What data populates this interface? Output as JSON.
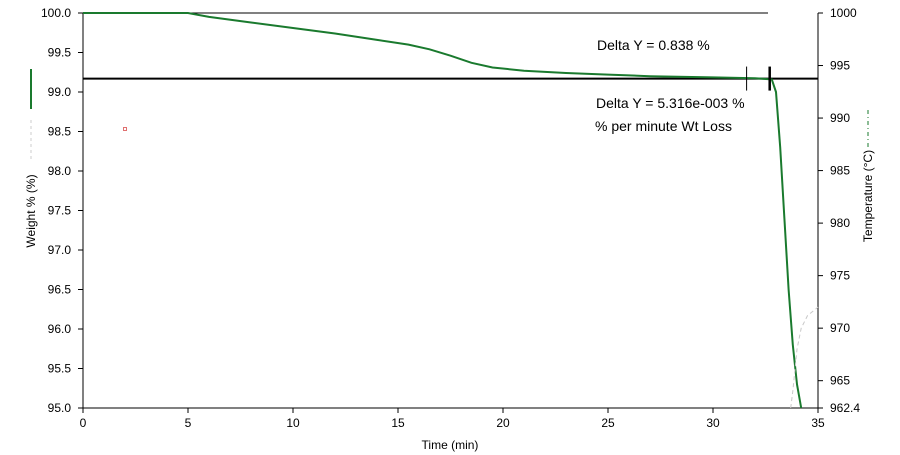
{
  "chart_data": {
    "type": "line",
    "xlabel": "Time (min)",
    "ylabel": "Weight % (%)",
    "y2label": "Temperature (°C)",
    "xlim": [
      0,
      35
    ],
    "ylim": [
      95.0,
      100.0
    ],
    "y2lim": [
      962.4,
      1000
    ],
    "x_ticks": [
      "0",
      "5",
      "10",
      "15",
      "20",
      "25",
      "30",
      "35"
    ],
    "y_ticks": [
      "95.0",
      "95.5",
      "96.0",
      "96.5",
      "97.0",
      "97.5",
      "98.0",
      "98.5",
      "99.0",
      "99.5",
      "100.0"
    ],
    "y2_ticks": [
      "962.4",
      "965",
      "970",
      "975",
      "980",
      "985",
      "990",
      "995",
      "1000"
    ],
    "grid": false,
    "series": [
      {
        "axis": "left",
        "color": "#1a7a2e",
        "x": [
          0,
          1.5,
          5,
          6,
          8,
          10,
          12,
          14,
          15.5,
          16.5,
          17.5,
          18.5,
          19.5,
          21,
          23,
          25,
          27,
          30,
          32,
          32.8,
          33.0,
          33.2,
          33.4,
          33.6,
          33.8,
          34.0,
          34.2
        ],
        "y": [
          100.0,
          100.0,
          100.0,
          99.95,
          99.88,
          99.81,
          99.74,
          99.66,
          99.6,
          99.54,
          99.46,
          99.37,
          99.31,
          99.27,
          99.24,
          99.22,
          99.2,
          99.185,
          99.175,
          99.16,
          99.0,
          98.3,
          97.4,
          96.5,
          95.8,
          95.3,
          95.0
        ]
      },
      {
        "axis": "right",
        "color": "#c8c8c8",
        "x": [
          33.7,
          33.8,
          33.9,
          34.0,
          34.2,
          34.5,
          35.0
        ],
        "y": [
          962.4,
          964.0,
          966.0,
          968.0,
          970.0,
          971.2,
          972.0
        ]
      }
    ],
    "hlines": [
      {
        "axis": "left",
        "y": 99.17,
        "color": "#000000"
      }
    ],
    "cursors": [
      {
        "x": 31.6,
        "y": 99.17,
        "style": "thin"
      },
      {
        "x": 32.7,
        "y": 99.17,
        "style": "thick"
      }
    ],
    "annotations": [
      {
        "id": "delta1",
        "text": "Delta Y = 0.838 %"
      },
      {
        "id": "delta2",
        "text": "Delta Y = 5.316e-003 %"
      },
      {
        "id": "rate",
        "text": "% per minute Wt Loss"
      }
    ]
  }
}
